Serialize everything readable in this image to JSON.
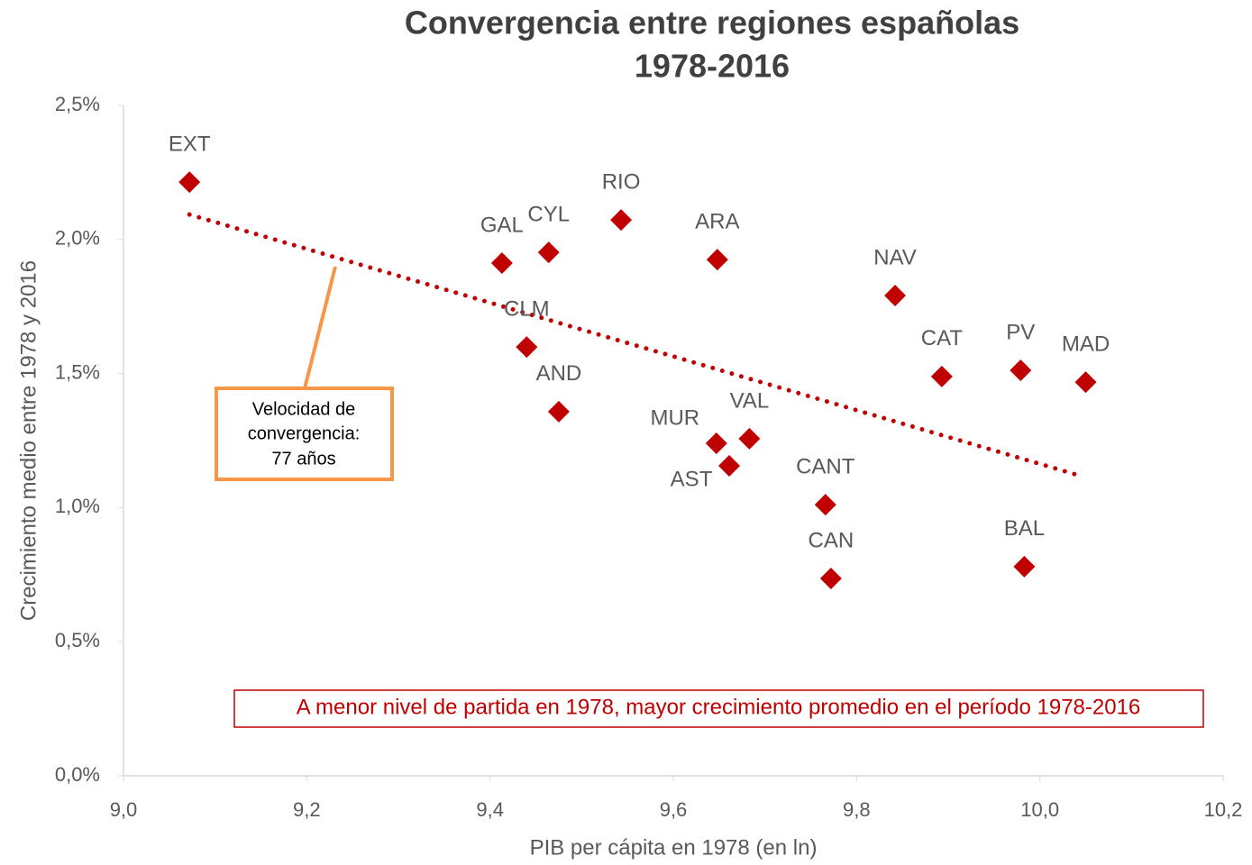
{
  "chart_data": {
    "type": "scatter",
    "title": [
      "Convergencia entre regiones españolas",
      "1978-2016"
    ],
    "xlabel": "PIB per cápita en 1978 (en ln)",
    "ylabel": "Crecimiento medio entre 1978 y 2016",
    "xlim": [
      9.0,
      10.2
    ],
    "ylim": [
      0,
      2.5
    ],
    "xticks": [
      {
        "value": 9.0,
        "label": "9,0"
      },
      {
        "value": 9.2,
        "label": "9,2"
      },
      {
        "value": 9.4,
        "label": "9,4"
      },
      {
        "value": 9.6,
        "label": "9,6"
      },
      {
        "value": 9.8,
        "label": "9,8"
      },
      {
        "value": 10.0,
        "label": "10,0"
      },
      {
        "value": 10.2,
        "label": "10,2"
      }
    ],
    "yticks": [
      {
        "value": 0,
        "label": "0,0%"
      },
      {
        "value": 0.5,
        "label": "0,5%"
      },
      {
        "value": 1.0,
        "label": "1,0%"
      },
      {
        "value": 1.5,
        "label": "1,5%"
      },
      {
        "value": 2.0,
        "label": "2,0%"
      },
      {
        "value": 2.5,
        "label": "2,5%"
      }
    ],
    "series": [
      {
        "color": "#c00000",
        "labels": [
          "EXT",
          "GAL",
          "CYL",
          "RIO",
          "ARA",
          "NAV",
          "CLM",
          "CAT",
          "PV",
          "MAD",
          "AND",
          "MUR",
          "VAL",
          "AST",
          "CANT",
          "CAN",
          "BAL"
        ],
        "x": [
          9.072,
          9.413,
          9.464,
          9.543,
          9.648,
          9.842,
          9.44,
          9.893,
          9.979,
          10.05,
          9.475,
          9.647,
          9.683,
          9.661,
          9.766,
          9.772,
          9.983
        ],
        "values": [
          2.214,
          1.912,
          1.952,
          2.073,
          1.925,
          1.791,
          1.599,
          1.489,
          1.512,
          1.468,
          1.358,
          1.24,
          1.257,
          1.156,
          1.011,
          0.736,
          0.78
        ]
      }
    ],
    "trendline": {
      "color": "#c00000",
      "x": [
        9.072,
        10.041
      ],
      "values": [
        2.093,
        1.122
      ]
    },
    "callout": {
      "lines": [
        "Velocidad de",
        "convergencia:",
        "77 años"
      ],
      "color": "#f79646"
    },
    "note": {
      "text": "A menor nivel de partida en 1978, mayor crecimiento promedio en el período 1978-2016",
      "color": "#c00000"
    }
  }
}
